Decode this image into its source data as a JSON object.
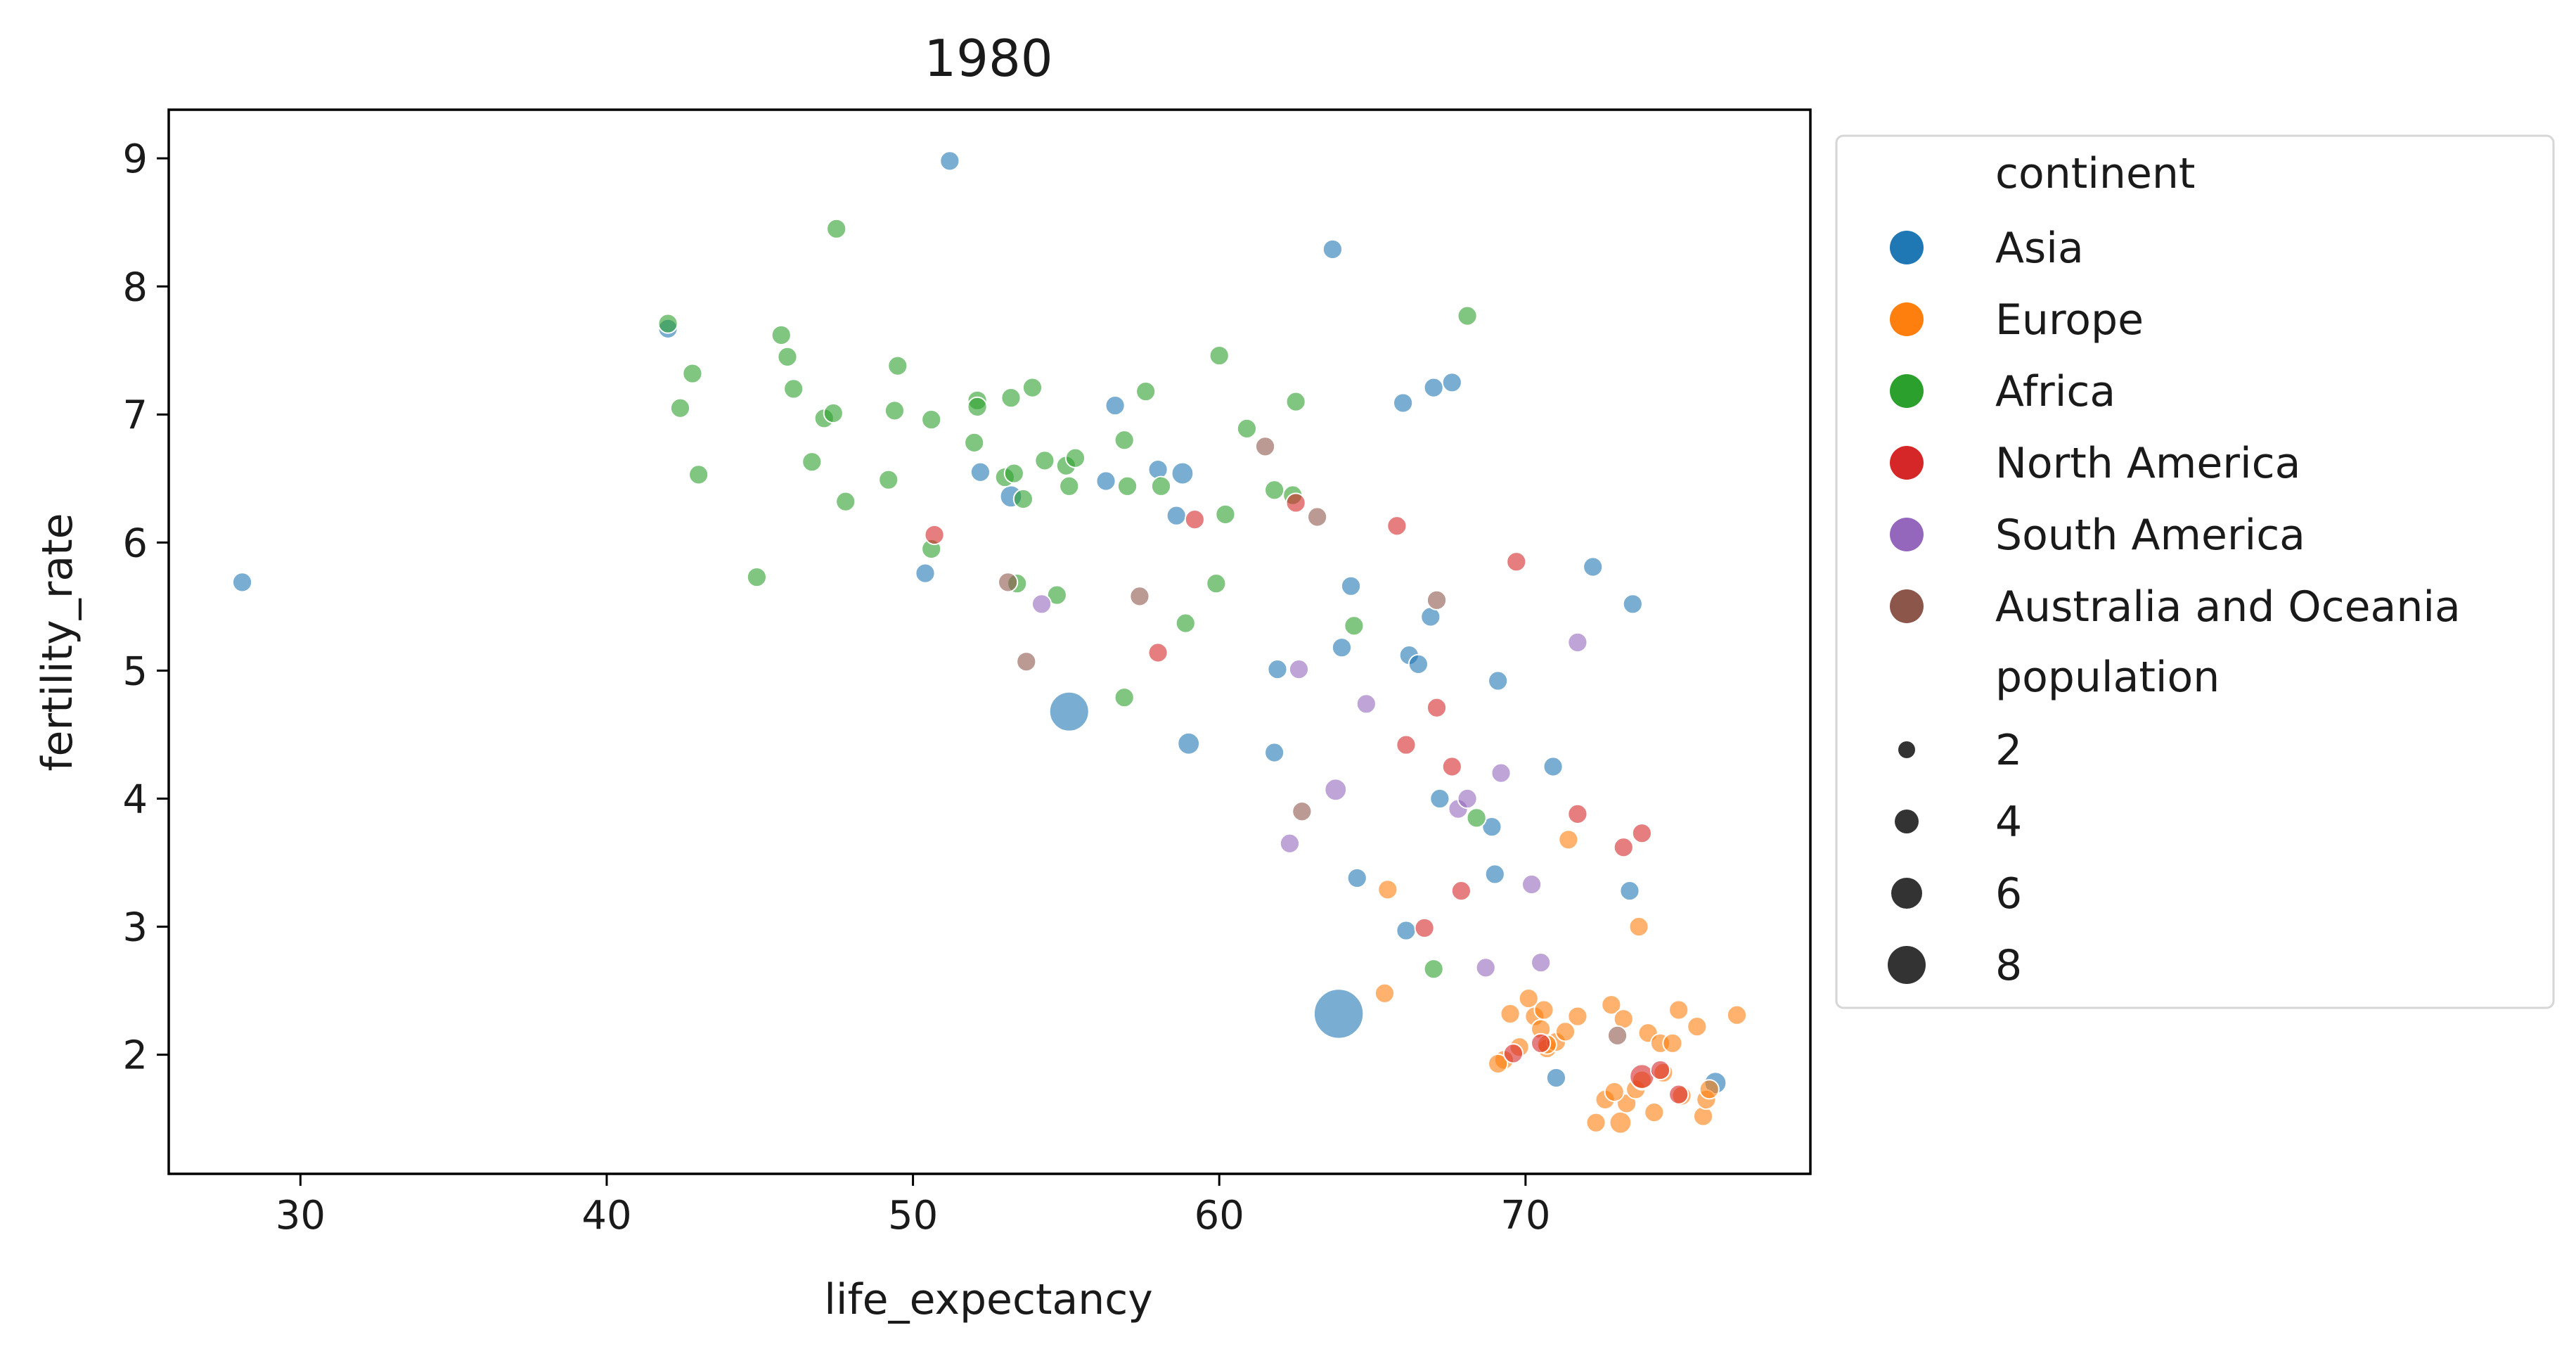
{
  "chart_data": {
    "type": "scatter",
    "title": "1980",
    "xlabel": "life_expectancy",
    "ylabel": "fertility_rate",
    "xlim": [
      25.7,
      79.3
    ],
    "ylim": [
      1.07,
      9.38
    ],
    "xticks": [
      30,
      40,
      50,
      60,
      70
    ],
    "yticks": [
      2,
      3,
      4,
      5,
      6,
      7,
      8,
      9
    ],
    "grid": false,
    "legend_placement": "outside-right",
    "hue_title": "continent",
    "size_title": "population",
    "size_levels": [
      2,
      4,
      6,
      8
    ],
    "series": [
      {
        "name": "Asia",
        "color": "#1f77b4",
        "points": [
          [
            28.1,
            5.69,
            1
          ],
          [
            42.0,
            7.67,
            1
          ],
          [
            51.2,
            8.98,
            1
          ],
          [
            63.7,
            8.29,
            1
          ],
          [
            52.2,
            6.55,
            1
          ],
          [
            53.2,
            6.36,
            1.5
          ],
          [
            56.3,
            6.48,
            1
          ],
          [
            56.6,
            7.07,
            1
          ],
          [
            58.0,
            6.57,
            1
          ],
          [
            58.6,
            6.21,
            1
          ],
          [
            58.8,
            6.54,
            1.5
          ],
          [
            50.4,
            5.76,
            1
          ],
          [
            55.1,
            4.68,
            5
          ],
          [
            59.0,
            4.43,
            1.5
          ],
          [
            61.8,
            4.36,
            1
          ],
          [
            61.9,
            5.01,
            1
          ],
          [
            64.0,
            5.18,
            1
          ],
          [
            64.3,
            5.66,
            1
          ],
          [
            64.5,
            3.38,
            1
          ],
          [
            66.0,
            7.09,
            1
          ],
          [
            66.2,
            5.12,
            1
          ],
          [
            66.5,
            5.05,
            1
          ],
          [
            66.9,
            5.42,
            1
          ],
          [
            67.0,
            7.21,
            1
          ],
          [
            67.2,
            4.0,
            1
          ],
          [
            67.6,
            7.25,
            1
          ],
          [
            68.9,
            3.78,
            1
          ],
          [
            69.0,
            3.41,
            1
          ],
          [
            69.1,
            4.92,
            1
          ],
          [
            70.9,
            4.25,
            1
          ],
          [
            72.2,
            5.81,
            1
          ],
          [
            73.5,
            5.52,
            1
          ],
          [
            73.4,
            3.28,
            1
          ],
          [
            66.1,
            2.97,
            1
          ],
          [
            63.9,
            2.32,
            7
          ],
          [
            71.0,
            1.82,
            1
          ],
          [
            76.2,
            1.78,
            1.5
          ]
        ]
      },
      {
        "name": "Europe",
        "color": "#ff7f0e",
        "points": [
          [
            65.5,
            3.29,
            1
          ],
          [
            65.4,
            2.48,
            1
          ],
          [
            69.3,
            1.96,
            1
          ],
          [
            69.5,
            2.32,
            1
          ],
          [
            69.8,
            2.06,
            1
          ],
          [
            70.1,
            2.44,
            1
          ],
          [
            70.3,
            2.3,
            1
          ],
          [
            70.5,
            2.2,
            1
          ],
          [
            70.6,
            2.35,
            1
          ],
          [
            70.7,
            2.05,
            1
          ],
          [
            71.0,
            2.1,
            1
          ],
          [
            71.3,
            2.18,
            1
          ],
          [
            71.4,
            3.68,
            1
          ],
          [
            71.7,
            2.3,
            1
          ],
          [
            72.3,
            1.47,
            1
          ],
          [
            72.6,
            1.65,
            1
          ],
          [
            72.8,
            2.39,
            1
          ],
          [
            73.1,
            1.47,
            1.5
          ],
          [
            73.2,
            2.28,
            1
          ],
          [
            73.3,
            1.62,
            1
          ],
          [
            73.6,
            1.73,
            1
          ],
          [
            73.7,
            3.0,
            1
          ],
          [
            73.8,
            1.8,
            1
          ],
          [
            74.0,
            2.17,
            1
          ],
          [
            74.2,
            1.55,
            1
          ],
          [
            74.4,
            2.09,
            1
          ],
          [
            74.5,
            1.86,
            1
          ],
          [
            74.8,
            2.09,
            1
          ],
          [
            75.0,
            2.35,
            1
          ],
          [
            75.1,
            1.68,
            1
          ],
          [
            75.6,
            2.22,
            1
          ],
          [
            75.8,
            1.52,
            1
          ],
          [
            75.9,
            1.65,
            1
          ],
          [
            76.0,
            1.73,
            1
          ],
          [
            76.9,
            2.31,
            1
          ],
          [
            69.1,
            1.93,
            1
          ],
          [
            70.7,
            2.08,
            1
          ],
          [
            72.9,
            1.71,
            1
          ]
        ]
      },
      {
        "name": "Africa",
        "color": "#2ca02c",
        "points": [
          [
            42.0,
            7.71,
            1
          ],
          [
            42.4,
            7.05,
            1
          ],
          [
            42.8,
            7.32,
            1
          ],
          [
            43.0,
            6.53,
            1
          ],
          [
            44.9,
            5.73,
            1
          ],
          [
            45.7,
            7.62,
            1
          ],
          [
            45.9,
            7.45,
            1
          ],
          [
            46.1,
            7.2,
            1
          ],
          [
            46.7,
            6.63,
            1
          ],
          [
            47.1,
            6.97,
            1
          ],
          [
            47.4,
            7.01,
            1
          ],
          [
            47.5,
            8.45,
            1
          ],
          [
            47.8,
            6.32,
            1
          ],
          [
            49.2,
            6.49,
            1
          ],
          [
            49.4,
            7.03,
            1
          ],
          [
            49.5,
            7.38,
            1
          ],
          [
            50.6,
            6.96,
            1
          ],
          [
            50.6,
            5.95,
            1
          ],
          [
            52.0,
            6.78,
            1
          ],
          [
            52.1,
            7.11,
            1
          ],
          [
            52.1,
            7.06,
            1
          ],
          [
            53.0,
            6.51,
            1
          ],
          [
            53.2,
            7.13,
            1
          ],
          [
            53.3,
            6.54,
            1
          ],
          [
            53.4,
            5.68,
            1
          ],
          [
            53.6,
            6.34,
            1
          ],
          [
            53.9,
            7.21,
            1
          ],
          [
            54.3,
            6.64,
            1
          ],
          [
            54.7,
            5.59,
            1
          ],
          [
            55.0,
            6.6,
            1
          ],
          [
            55.1,
            6.44,
            1
          ],
          [
            55.3,
            6.66,
            1
          ],
          [
            56.9,
            6.8,
            1
          ],
          [
            57.0,
            6.44,
            1
          ],
          [
            56.9,
            4.79,
            1
          ],
          [
            57.6,
            7.18,
            1
          ],
          [
            58.1,
            6.44,
            1
          ],
          [
            58.9,
            5.37,
            1
          ],
          [
            59.9,
            5.68,
            1
          ],
          [
            60.0,
            7.46,
            1
          ],
          [
            60.2,
            6.22,
            1
          ],
          [
            60.9,
            6.89,
            1
          ],
          [
            61.8,
            6.41,
            1
          ],
          [
            62.4,
            6.37,
            1
          ],
          [
            62.5,
            7.1,
            1
          ],
          [
            64.4,
            5.35,
            1
          ],
          [
            67.0,
            2.67,
            1
          ],
          [
            68.1,
            7.77,
            1
          ],
          [
            68.4,
            3.85,
            1
          ]
        ]
      },
      {
        "name": "North America",
        "color": "#d62728",
        "points": [
          [
            50.7,
            6.06,
            1
          ],
          [
            58.0,
            5.14,
            1
          ],
          [
            59.2,
            6.18,
            1
          ],
          [
            62.5,
            6.31,
            1
          ],
          [
            65.8,
            6.13,
            1
          ],
          [
            66.1,
            4.42,
            1
          ],
          [
            66.7,
            2.99,
            1
          ],
          [
            67.1,
            4.71,
            1
          ],
          [
            67.6,
            4.25,
            1
          ],
          [
            67.9,
            3.28,
            1
          ],
          [
            69.6,
            2.01,
            1
          ],
          [
            69.7,
            5.85,
            1
          ],
          [
            70.5,
            2.09,
            1
          ],
          [
            71.7,
            3.88,
            1
          ],
          [
            73.2,
            3.62,
            1
          ],
          [
            73.8,
            3.73,
            1
          ],
          [
            73.8,
            1.83,
            2
          ],
          [
            74.4,
            1.88,
            1
          ],
          [
            75.0,
            1.69,
            1
          ]
        ]
      },
      {
        "name": "South America",
        "color": "#9467bd",
        "points": [
          [
            54.2,
            5.52,
            1
          ],
          [
            62.3,
            3.65,
            1
          ],
          [
            62.6,
            5.01,
            1
          ],
          [
            63.8,
            4.07,
            1.5
          ],
          [
            64.8,
            4.74,
            1
          ],
          [
            67.8,
            3.92,
            1
          ],
          [
            68.1,
            4.0,
            1
          ],
          [
            68.7,
            2.68,
            1
          ],
          [
            69.2,
            4.2,
            1
          ],
          [
            70.2,
            3.33,
            1
          ],
          [
            70.5,
            2.72,
            1
          ],
          [
            71.7,
            5.22,
            1
          ]
        ]
      },
      {
        "name": "Australia and Oceania",
        "color": "#8c564b",
        "points": [
          [
            53.1,
            5.69,
            1
          ],
          [
            53.7,
            5.07,
            1
          ],
          [
            57.4,
            5.58,
            1
          ],
          [
            61.5,
            6.75,
            1
          ],
          [
            62.7,
            3.9,
            1
          ],
          [
            63.2,
            6.2,
            1
          ],
          [
            67.1,
            5.55,
            1
          ],
          [
            73.0,
            2.15,
            1
          ]
        ]
      }
    ]
  }
}
